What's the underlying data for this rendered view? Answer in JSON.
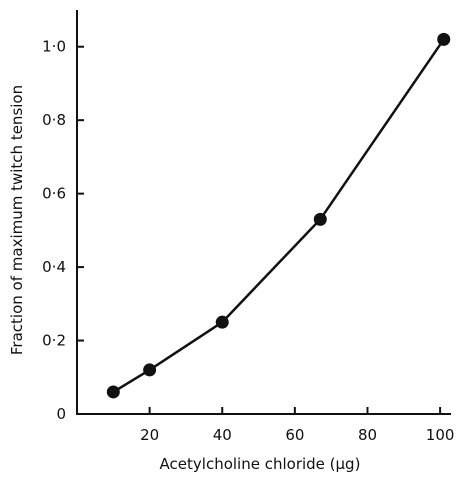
{
  "chart_data": {
    "type": "line",
    "title": "",
    "xlabel": "Acetylcholine chloride (μg)",
    "ylabel": "Fraction of maximum twitch tension",
    "xlim": [
      0,
      103
    ],
    "ylim": [
      0,
      1.1
    ],
    "x_ticks": [
      {
        "value": 20,
        "label": "20"
      },
      {
        "value": 40,
        "label": "40"
      },
      {
        "value": 60,
        "label": "60"
      },
      {
        "value": 80,
        "label": "80"
      },
      {
        "value": 100,
        "label": "100"
      }
    ],
    "y_ticks": [
      {
        "value": 0,
        "label": "0"
      },
      {
        "value": 0.2,
        "label": "0·2"
      },
      {
        "value": 0.4,
        "label": "0·4"
      },
      {
        "value": 0.6,
        "label": "0·6"
      },
      {
        "value": 0.8,
        "label": "0·8"
      },
      {
        "value": 1.0,
        "label": "1·0"
      }
    ],
    "grid": false,
    "series": [
      {
        "x": [
          10,
          20,
          40,
          67,
          101
        ],
        "y": [
          0.06,
          0.12,
          0.25,
          0.53,
          1.02
        ]
      }
    ],
    "line_color": "#111111",
    "marker_color": "#111111"
  }
}
